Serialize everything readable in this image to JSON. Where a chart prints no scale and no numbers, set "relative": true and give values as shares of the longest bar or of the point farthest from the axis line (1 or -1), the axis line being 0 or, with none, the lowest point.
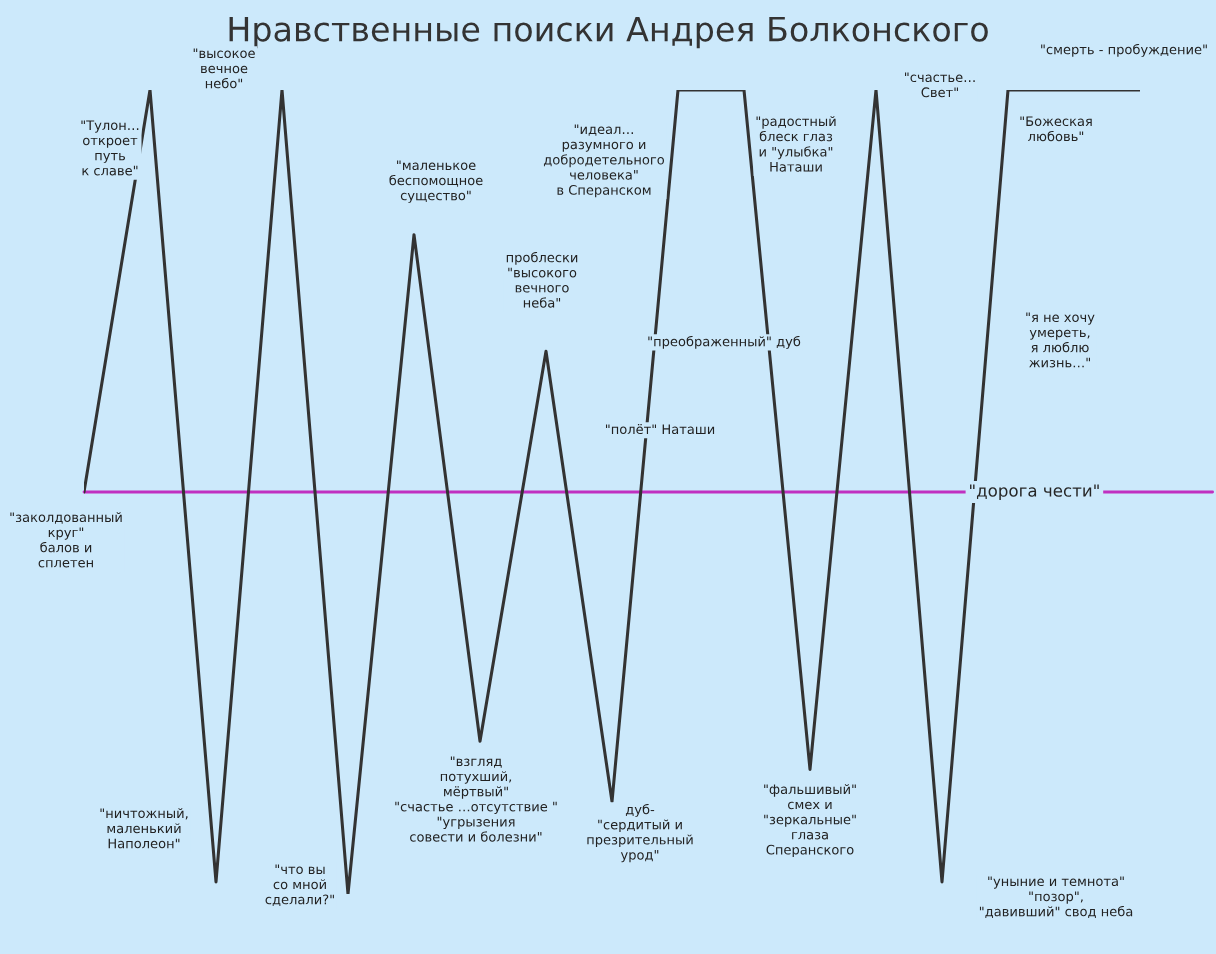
{
  "chart_data": {
    "type": "line",
    "relative": true,
    "title": "Нравственные поиски Андрея Болконского",
    "categories": [
      null,
      null,
      null,
      null,
      null,
      null,
      null,
      null,
      null,
      null,
      null,
      null,
      null,
      null,
      null,
      null,
      null
    ],
    "series": [
      {
        "color": "#333333",
        "values": [
          0,
          1,
          -0.97,
          1,
          -1,
          0.64,
          -0.62,
          0.35,
          -0.77,
          1,
          1,
          -0.69,
          1,
          -0.97,
          1,
          1,
          1
        ]
      }
    ],
    "ref_lines": [
      {
        "axis": "y",
        "value": 0,
        "label": "\"дорога чести\"",
        "color": "#c030c0"
      }
    ],
    "annotations": [
      "\"Тулон…\nоткроет\nпуть\nк славе\"",
      "\"высокое\nвечное\nнебо\"",
      "\"заколдованный\nкруг\"\nбалов и\nсплетен",
      "\"ничтожный,\nмаленький\nНаполеон\"",
      "\"что вы\nсо мной\nсделали?\"",
      "\"маленькое\nбеспомощное\nсущество\"",
      "\"взгляд\nпотухший,\nмёртвый\"\n\"счастье …отсутствие \"\n\"угрызения\nсовести и болезни\"",
      "проблески\n\"высокого\nвечного\nнеба\"",
      "\"преображенный\" дуб",
      "\"полёт\" Наташи",
      "дуб-\n\"сердитый и\nпрезрительный\nурод\"",
      "\"идеал…\nразумного и\nдобродетельного\nчеловека\"\nв Сперанском",
      "\"радостный\nблеск глаз\nи \"улыбка\"\nНаташи",
      "\"фальшивый\"\nсмех и\n\"зеркальные\"\nглаза\nСперанского",
      "\"счастье…\nСвет\"",
      "\"смерть - пробуждение\"",
      "\"Божеская\nлюбовь\"",
      "\"я не хочу\nумереть,\nя люблю\nжизнь…\"",
      "\"уныние и темнота\"\n\"позор\",\n\"давивший\" свод неба"
    ]
  }
}
